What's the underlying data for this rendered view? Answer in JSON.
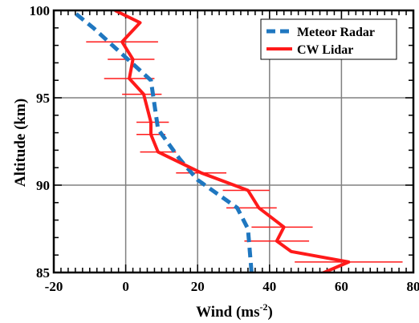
{
  "chart_data": {
    "type": "line",
    "title": "",
    "xlabel": "Wind (ms",
    "xlabel_sup": "-2",
    "xlabel_close": ")",
    "ylabel": "Altitude (km)",
    "xlim": [
      -20,
      80
    ],
    "ylim": [
      85,
      100
    ],
    "xticks": [
      -20,
      0,
      20,
      40,
      60,
      80
    ],
    "yticks": [
      85,
      90,
      95,
      100
    ],
    "xtick_labels": [
      "-20",
      "0",
      "20",
      "40",
      "60",
      "80"
    ],
    "ytick_labels": [
      "85",
      "90",
      "95",
      "100"
    ],
    "grid": true,
    "legend": {
      "position": "top-right",
      "entries": [
        "Meteor Radar",
        "CW Lidar"
      ]
    },
    "series": [
      {
        "name": "Meteor Radar",
        "color": "#1f77c0",
        "style": "dashed",
        "points": [
          {
            "x": 35,
            "y": 85.0
          },
          {
            "x": 34,
            "y": 87.5
          },
          {
            "x": 31,
            "y": 88.7
          },
          {
            "x": 20,
            "y": 90.3
          },
          {
            "x": 15,
            "y": 91.5
          },
          {
            "x": 9,
            "y": 93.2
          },
          {
            "x": 7,
            "y": 96.0
          },
          {
            "x": -1,
            "y": 97.5
          },
          {
            "x": -9,
            "y": 99.0
          },
          {
            "x": -15,
            "y": 100.0
          }
        ]
      },
      {
        "name": "CW Lidar",
        "color": "#ff1a1a",
        "style": "solid",
        "points": [
          {
            "x": 54,
            "y": 84.9
          },
          {
            "x": 62,
            "y": 85.6
          },
          {
            "x": 46,
            "y": 86.2
          },
          {
            "x": 42,
            "y": 86.8
          },
          {
            "x": 44,
            "y": 87.6
          },
          {
            "x": 37,
            "y": 88.7
          },
          {
            "x": 34,
            "y": 89.7
          },
          {
            "x": 21,
            "y": 90.7
          },
          {
            "x": 9,
            "y": 91.9
          },
          {
            "x": 7,
            "y": 92.9
          },
          {
            "x": 7,
            "y": 93.6
          },
          {
            "x": 5,
            "y": 95.2
          },
          {
            "x": 1,
            "y": 96.1
          },
          {
            "x": 2,
            "y": 97.2
          },
          {
            "x": -1,
            "y": 98.2
          },
          {
            "x": 4,
            "y": 99.3
          },
          {
            "x": -3,
            "y": 100.0
          }
        ],
        "error_bars": [
          {
            "y": 85.6,
            "x_low": 47,
            "x_high": 77
          },
          {
            "y": 86.8,
            "x_low": 33,
            "x_high": 51
          },
          {
            "x_low": 35,
            "x_high": 52,
            "y": 87.6
          },
          {
            "x_low": 28,
            "x_high": 42,
            "y": 88.7
          },
          {
            "x_low": 27,
            "x_high": 40,
            "y": 89.7
          },
          {
            "x_low": 14,
            "x_high": 28,
            "y": 90.7
          },
          {
            "x_low": 4,
            "x_high": 14,
            "y": 91.9
          },
          {
            "x_low": 3,
            "x_high": 11,
            "y": 92.9
          },
          {
            "x_low": 3,
            "x_high": 12,
            "y": 93.6
          },
          {
            "x_low": -1,
            "x_high": 10,
            "y": 95.2
          },
          {
            "x_low": -6,
            "x_high": 8,
            "y": 96.1
          },
          {
            "x_low": -5,
            "x_high": 8,
            "y": 97.2
          },
          {
            "x_low": -11,
            "x_high": 9,
            "y": 98.2
          }
        ]
      }
    ]
  }
}
